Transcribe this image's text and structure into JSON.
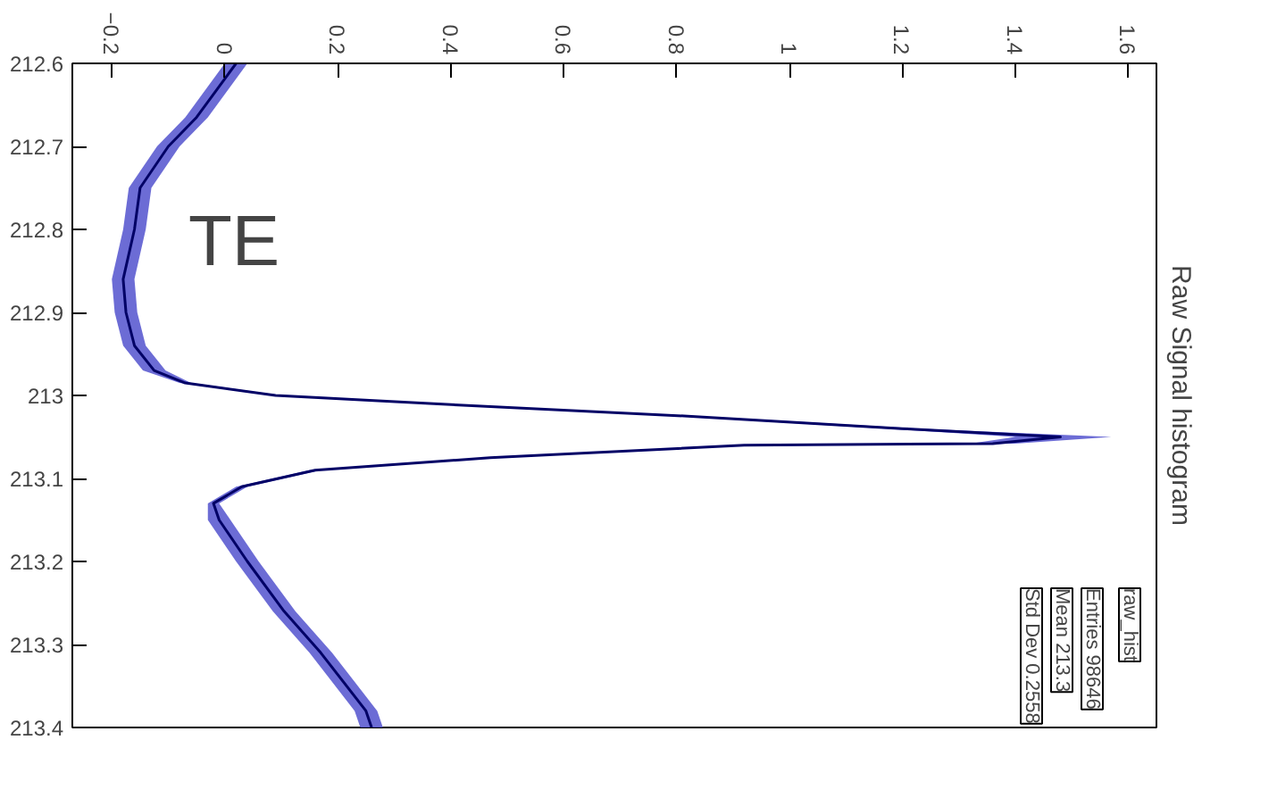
{
  "chart_data": {
    "type": "line",
    "title": "Raw Signal histogram",
    "series": [
      {
        "type": "area",
        "color": "#5c5cd0",
        "x": [
          0.0,
          -0.07,
          -0.12,
          -0.17,
          -0.18,
          -0.2,
          -0.195,
          -0.18,
          -0.145,
          -0.08,
          0.08,
          0.36,
          0.8,
          1.17,
          1.4,
          1.32,
          0.9,
          0.46,
          0.15,
          0.02,
          -0.03,
          -0.03,
          0.02,
          0.085,
          0.15,
          0.23,
          0.24,
          0.28,
          0.27,
          0.19,
          0.125,
          0.06,
          0.01,
          -0.01,
          0.04,
          0.17,
          0.48,
          0.94,
          1.4,
          1.57,
          1.23,
          0.84,
          0.38,
          0.1,
          -0.06,
          -0.105,
          -0.14,
          -0.155,
          -0.16,
          -0.14,
          -0.13,
          -0.08,
          -0.03,
          0.04
        ],
        "values": [
          212.6,
          212.665,
          212.7,
          212.75,
          212.8,
          212.86,
          212.9,
          212.94,
          212.97,
          212.985,
          213.0,
          213.01,
          213.025,
          213.04,
          213.05,
          213.058,
          213.06,
          213.075,
          213.09,
          213.11,
          213.13,
          213.15,
          213.2,
          213.26,
          213.31,
          213.38,
          213.4,
          213.4,
          213.38,
          213.31,
          213.26,
          213.2,
          213.15,
          213.13,
          213.11,
          213.09,
          213.075,
          213.06,
          213.058,
          213.05,
          213.04,
          213.025,
          213.01,
          213.0,
          212.985,
          212.97,
          212.94,
          212.9,
          212.86,
          212.8,
          212.75,
          212.7,
          212.665,
          212.6
        ]
      },
      {
        "color": "#000066",
        "x": [
          0.02,
          -0.05,
          -0.1,
          -0.15,
          -0.16,
          -0.18,
          -0.175,
          -0.16,
          -0.125,
          -0.07,
          0.09,
          0.37,
          0.82,
          1.2,
          1.48,
          1.36,
          0.92,
          0.47,
          0.16,
          0.03,
          -0.02,
          -0.01,
          0.04,
          0.105,
          0.17,
          0.25,
          0.26
        ],
        "values": [
          212.6,
          212.665,
          212.7,
          212.75,
          212.8,
          212.86,
          212.9,
          212.94,
          212.97,
          212.985,
          213.0,
          213.01,
          213.025,
          213.04,
          213.05,
          213.058,
          213.06,
          213.075,
          213.09,
          213.11,
          213.13,
          213.15,
          213.2,
          213.26,
          213.31,
          213.38,
          213.4
        ]
      }
    ],
    "xlim": [
      -0.27,
      1.65
    ],
    "xticks": [
      -0.2,
      0,
      0.2,
      0.4,
      0.6,
      0.8,
      1,
      1.2,
      1.4,
      1.6
    ],
    "ylim": [
      213.4,
      212.6
    ],
    "yticks": [
      212.6,
      212.7,
      212.8,
      212.9,
      213,
      213.1,
      213.2,
      213.3,
      213.4
    ],
    "annotations": [
      "TE",
      "raw_hist",
      "Entries 98646",
      "Mean 213.3",
      "Std Dev 0.2558"
    ],
    "grid": false
  }
}
